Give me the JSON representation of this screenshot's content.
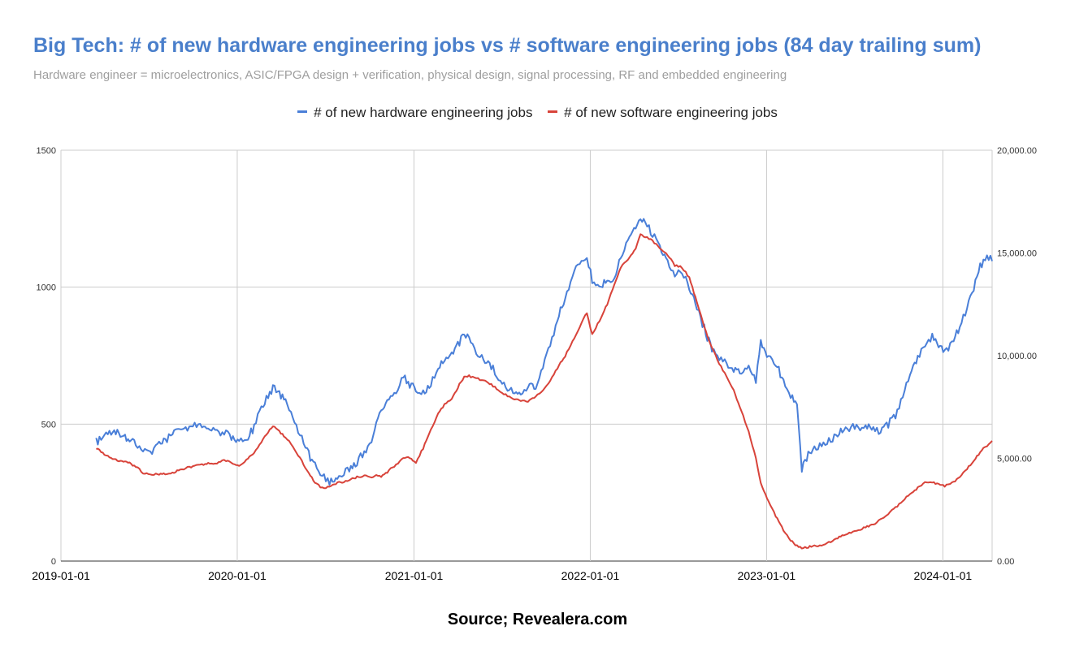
{
  "chart_data": {
    "type": "line",
    "title": "Big Tech: # of new hardware engineering jobs vs # software engineering jobs (84 day trailing sum)",
    "subtitle": "Hardware engineer = microelectronics, ASIC/FPGA design + verification, physical design, signal processing, RF and embedded engineering",
    "source": "Source; Revealera.com",
    "legend_position": "top",
    "grid": true,
    "x_axis": {
      "type": "date",
      "range": [
        "2019-01-01",
        "2024-04-12"
      ],
      "ticks": [
        "2019-01-01",
        "2020-01-01",
        "2021-01-01",
        "2022-01-01",
        "2023-01-01",
        "2024-01-01"
      ]
    },
    "y_left": {
      "range": [
        0,
        1500
      ],
      "ticks": [
        "0",
        "500",
        "1000",
        "1500"
      ]
    },
    "y_right": {
      "range": [
        0,
        20000
      ],
      "ticks": [
        "0.00",
        "5,000.00",
        "10,000.00",
        "15,000.00",
        "20,000.00"
      ]
    },
    "series": [
      {
        "name": "# of new hardware engineering jobs",
        "axis": "left",
        "color": "#4a7fd8",
        "points": [
          [
            "2019-03-15",
            435
          ],
          [
            "2019-04-01",
            450
          ],
          [
            "2019-04-15",
            475
          ],
          [
            "2019-05-01",
            468
          ],
          [
            "2019-05-20",
            450
          ],
          [
            "2019-06-05",
            430
          ],
          [
            "2019-06-20",
            398
          ],
          [
            "2019-07-05",
            400
          ],
          [
            "2019-07-20",
            420
          ],
          [
            "2019-08-05",
            440
          ],
          [
            "2019-08-20",
            462
          ],
          [
            "2019-09-05",
            485
          ],
          [
            "2019-09-20",
            490
          ],
          [
            "2019-10-05",
            495
          ],
          [
            "2019-10-20",
            488
          ],
          [
            "2019-11-05",
            485
          ],
          [
            "2019-11-20",
            475
          ],
          [
            "2019-12-05",
            470
          ],
          [
            "2019-12-20",
            448
          ],
          [
            "2020-01-05",
            438
          ],
          [
            "2020-01-20",
            442
          ],
          [
            "2020-02-05",
            490
          ],
          [
            "2020-02-20",
            560
          ],
          [
            "2020-03-05",
            605
          ],
          [
            "2020-03-15",
            632
          ],
          [
            "2020-03-25",
            625
          ],
          [
            "2020-04-10",
            580
          ],
          [
            "2020-04-25",
            520
          ],
          [
            "2020-05-10",
            460
          ],
          [
            "2020-05-25",
            400
          ],
          [
            "2020-06-10",
            350
          ],
          [
            "2020-06-25",
            310
          ],
          [
            "2020-07-10",
            285
          ],
          [
            "2020-07-20",
            295
          ],
          [
            "2020-08-05",
            320
          ],
          [
            "2020-08-20",
            340
          ],
          [
            "2020-09-05",
            360
          ],
          [
            "2020-09-20",
            400
          ],
          [
            "2020-10-05",
            440
          ],
          [
            "2020-10-15",
            500
          ],
          [
            "2020-10-25",
            560
          ],
          [
            "2020-11-10",
            580
          ],
          [
            "2020-11-25",
            620
          ],
          [
            "2020-12-10",
            680
          ],
          [
            "2020-12-20",
            650
          ],
          [
            "2021-01-05",
            630
          ],
          [
            "2021-01-20",
            610
          ],
          [
            "2021-02-05",
            650
          ],
          [
            "2021-02-20",
            700
          ],
          [
            "2021-03-05",
            740
          ],
          [
            "2021-03-20",
            750
          ],
          [
            "2021-04-05",
            800
          ],
          [
            "2021-04-15",
            820
          ],
          [
            "2021-04-25",
            810
          ],
          [
            "2021-05-10",
            760
          ],
          [
            "2021-05-25",
            740
          ],
          [
            "2021-06-10",
            710
          ],
          [
            "2021-06-25",
            670
          ],
          [
            "2021-07-10",
            640
          ],
          [
            "2021-07-25",
            620
          ],
          [
            "2021-08-10",
            620
          ],
          [
            "2021-08-25",
            630
          ],
          [
            "2021-09-10",
            640
          ],
          [
            "2021-09-25",
            700
          ],
          [
            "2021-10-10",
            790
          ],
          [
            "2021-10-25",
            880
          ],
          [
            "2021-11-10",
            960
          ],
          [
            "2021-11-25",
            1050
          ],
          [
            "2021-12-10",
            1090
          ],
          [
            "2021-12-25",
            1120
          ],
          [
            "2022-01-05",
            1020
          ],
          [
            "2022-01-20",
            1000
          ],
          [
            "2022-02-05",
            1020
          ],
          [
            "2022-02-20",
            1040
          ],
          [
            "2022-03-05",
            1100
          ],
          [
            "2022-03-20",
            1170
          ],
          [
            "2022-04-05",
            1210
          ],
          [
            "2022-04-15",
            1250
          ],
          [
            "2022-04-25",
            1235
          ],
          [
            "2022-05-10",
            1190
          ],
          [
            "2022-05-25",
            1150
          ],
          [
            "2022-06-10",
            1100
          ],
          [
            "2022-06-25",
            1040
          ],
          [
            "2022-07-10",
            1060
          ],
          [
            "2022-07-25",
            1000
          ],
          [
            "2022-08-10",
            920
          ],
          [
            "2022-08-25",
            850
          ],
          [
            "2022-09-10",
            770
          ],
          [
            "2022-09-25",
            740
          ],
          [
            "2022-10-10",
            720
          ],
          [
            "2022-10-25",
            700
          ],
          [
            "2022-11-10",
            680
          ],
          [
            "2022-11-25",
            700
          ],
          [
            "2022-12-10",
            660
          ],
          [
            "2022-12-20",
            800
          ],
          [
            "2023-01-05",
            740
          ],
          [
            "2023-01-20",
            720
          ],
          [
            "2023-02-05",
            660
          ],
          [
            "2023-02-20",
            600
          ],
          [
            "2023-03-05",
            580
          ],
          [
            "2023-03-15",
            340
          ],
          [
            "2023-03-25",
            380
          ],
          [
            "2023-04-10",
            410
          ],
          [
            "2023-04-25",
            430
          ],
          [
            "2023-05-10",
            445
          ],
          [
            "2023-05-25",
            455
          ],
          [
            "2023-06-10",
            480
          ],
          [
            "2023-06-25",
            490
          ],
          [
            "2023-07-10",
            485
          ],
          [
            "2023-07-25",
            492
          ],
          [
            "2023-08-10",
            478
          ],
          [
            "2023-08-25",
            470
          ],
          [
            "2023-09-10",
            500
          ],
          [
            "2023-09-25",
            530
          ],
          [
            "2023-10-10",
            600
          ],
          [
            "2023-10-25",
            690
          ],
          [
            "2023-11-10",
            740
          ],
          [
            "2023-11-25",
            790
          ],
          [
            "2023-12-10",
            820
          ],
          [
            "2023-12-20",
            800
          ],
          [
            "2024-01-05",
            760
          ],
          [
            "2024-01-20",
            790
          ],
          [
            "2024-02-05",
            860
          ],
          [
            "2024-02-20",
            920
          ],
          [
            "2024-03-05",
            990
          ],
          [
            "2024-03-15",
            1060
          ],
          [
            "2024-03-25",
            1100
          ],
          [
            "2024-04-05",
            1110
          ],
          [
            "2024-04-12",
            1095
          ]
        ]
      },
      {
        "name": "# of new software engineering jobs",
        "axis": "right",
        "color": "#d8433a",
        "points": [
          [
            "2019-03-15",
            5500
          ],
          [
            "2019-04-01",
            5200
          ],
          [
            "2019-04-15",
            5000
          ],
          [
            "2019-05-01",
            4900
          ],
          [
            "2019-05-20",
            4800
          ],
          [
            "2019-06-05",
            4600
          ],
          [
            "2019-06-20",
            4300
          ],
          [
            "2019-07-05",
            4250
          ],
          [
            "2019-07-20",
            4200
          ],
          [
            "2019-08-05",
            4250
          ],
          [
            "2019-08-20",
            4300
          ],
          [
            "2019-09-05",
            4450
          ],
          [
            "2019-09-20",
            4550
          ],
          [
            "2019-10-05",
            4650
          ],
          [
            "2019-10-20",
            4700
          ],
          [
            "2019-11-05",
            4750
          ],
          [
            "2019-11-20",
            4780
          ],
          [
            "2019-12-05",
            4900
          ],
          [
            "2019-12-20",
            4800
          ],
          [
            "2020-01-05",
            4600
          ],
          [
            "2020-01-20",
            4900
          ],
          [
            "2020-02-05",
            5300
          ],
          [
            "2020-02-20",
            5800
          ],
          [
            "2020-03-05",
            6300
          ],
          [
            "2020-03-15",
            6550
          ],
          [
            "2020-03-25",
            6400
          ],
          [
            "2020-04-10",
            6000
          ],
          [
            "2020-04-25",
            5600
          ],
          [
            "2020-05-10",
            5000
          ],
          [
            "2020-05-25",
            4400
          ],
          [
            "2020-06-10",
            3800
          ],
          [
            "2020-06-25",
            3550
          ],
          [
            "2020-07-10",
            3600
          ],
          [
            "2020-07-20",
            3750
          ],
          [
            "2020-08-05",
            3850
          ],
          [
            "2020-08-20",
            3950
          ],
          [
            "2020-09-05",
            4100
          ],
          [
            "2020-09-20",
            4150
          ],
          [
            "2020-10-05",
            4100
          ],
          [
            "2020-10-15",
            4150
          ],
          [
            "2020-10-25",
            4100
          ],
          [
            "2020-11-10",
            4400
          ],
          [
            "2020-11-25",
            4700
          ],
          [
            "2020-12-10",
            5000
          ],
          [
            "2020-12-20",
            5050
          ],
          [
            "2021-01-05",
            4800
          ],
          [
            "2021-01-20",
            5500
          ],
          [
            "2021-02-05",
            6400
          ],
          [
            "2021-02-20",
            7200
          ],
          [
            "2021-03-05",
            7600
          ],
          [
            "2021-03-20",
            7900
          ],
          [
            "2021-04-05",
            8600
          ],
          [
            "2021-04-15",
            8950
          ],
          [
            "2021-04-25",
            9000
          ],
          [
            "2021-05-10",
            8900
          ],
          [
            "2021-05-25",
            8800
          ],
          [
            "2021-06-10",
            8600
          ],
          [
            "2021-06-25",
            8300
          ],
          [
            "2021-07-10",
            8100
          ],
          [
            "2021-07-25",
            7900
          ],
          [
            "2021-08-10",
            7800
          ],
          [
            "2021-08-25",
            7750
          ],
          [
            "2021-09-10",
            8000
          ],
          [
            "2021-09-25",
            8300
          ],
          [
            "2021-10-10",
            8800
          ],
          [
            "2021-10-25",
            9400
          ],
          [
            "2021-11-10",
            10000
          ],
          [
            "2021-11-25",
            10700
          ],
          [
            "2021-12-10",
            11400
          ],
          [
            "2021-12-25",
            12100
          ],
          [
            "2022-01-05",
            11000
          ],
          [
            "2022-01-20",
            11700
          ],
          [
            "2022-02-05",
            12500
          ],
          [
            "2022-02-20",
            13500
          ],
          [
            "2022-03-05",
            14300
          ],
          [
            "2022-03-20",
            14700
          ],
          [
            "2022-04-05",
            15200
          ],
          [
            "2022-04-15",
            15900
          ],
          [
            "2022-04-25",
            15800
          ],
          [
            "2022-05-10",
            15600
          ],
          [
            "2022-05-25",
            15200
          ],
          [
            "2022-06-10",
            14900
          ],
          [
            "2022-06-25",
            14400
          ],
          [
            "2022-07-10",
            14300
          ],
          [
            "2022-07-25",
            13800
          ],
          [
            "2022-08-10",
            12600
          ],
          [
            "2022-08-25",
            11400
          ],
          [
            "2022-09-10",
            10400
          ],
          [
            "2022-09-25",
            9600
          ],
          [
            "2022-10-10",
            9000
          ],
          [
            "2022-10-25",
            8300
          ],
          [
            "2022-11-10",
            7300
          ],
          [
            "2022-11-25",
            6300
          ],
          [
            "2022-12-10",
            5000
          ],
          [
            "2022-12-20",
            3800
          ],
          [
            "2023-01-05",
            2900
          ],
          [
            "2023-01-20",
            2200
          ],
          [
            "2023-02-05",
            1500
          ],
          [
            "2023-02-20",
            1000
          ],
          [
            "2023-03-05",
            750
          ],
          [
            "2023-03-15",
            650
          ],
          [
            "2023-03-25",
            680
          ],
          [
            "2023-04-10",
            720
          ],
          [
            "2023-04-25",
            760
          ],
          [
            "2023-05-10",
            900
          ],
          [
            "2023-05-25",
            1100
          ],
          [
            "2023-06-10",
            1250
          ],
          [
            "2023-06-25",
            1400
          ],
          [
            "2023-07-10",
            1500
          ],
          [
            "2023-07-25",
            1650
          ],
          [
            "2023-08-10",
            1800
          ],
          [
            "2023-08-25",
            2000
          ],
          [
            "2023-09-10",
            2300
          ],
          [
            "2023-09-25",
            2600
          ],
          [
            "2023-10-10",
            2900
          ],
          [
            "2023-10-25",
            3300
          ],
          [
            "2023-11-10",
            3550
          ],
          [
            "2023-11-25",
            3800
          ],
          [
            "2023-12-10",
            3850
          ],
          [
            "2023-12-20",
            3750
          ],
          [
            "2024-01-05",
            3650
          ],
          [
            "2024-01-20",
            3800
          ],
          [
            "2024-02-05",
            4100
          ],
          [
            "2024-02-20",
            4500
          ],
          [
            "2024-03-05",
            4900
          ],
          [
            "2024-03-15",
            5200
          ],
          [
            "2024-03-25",
            5500
          ],
          [
            "2024-04-05",
            5700
          ],
          [
            "2024-04-12",
            5850
          ]
        ]
      }
    ]
  }
}
